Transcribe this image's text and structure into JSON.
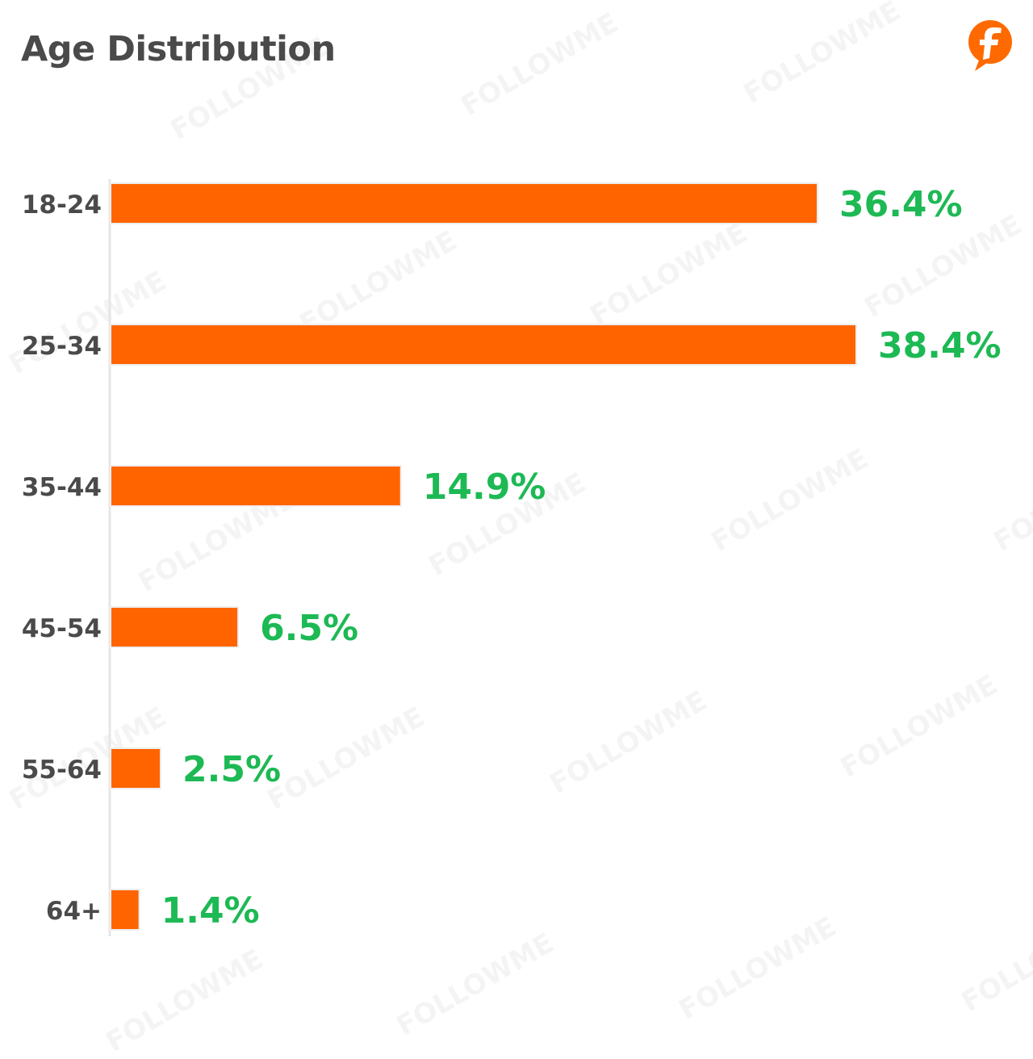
{
  "watermark_text": "FOLLOWME",
  "logo": {
    "icon": "followme-f-logo-icon",
    "color": "#ff6a00"
  },
  "chart_data": {
    "type": "bar",
    "orientation": "horizontal",
    "title": "Age Distribution",
    "categories": [
      "18-24",
      "25-34",
      "35-44",
      "45-54",
      "55-64",
      "64+"
    ],
    "values": [
      36.4,
      38.4,
      14.9,
      6.5,
      2.5,
      1.4
    ],
    "value_labels": [
      "36.4%",
      "38.4%",
      "14.9%",
      "6.5%",
      "2.5%",
      "1.4%"
    ],
    "xlabel": "",
    "ylabel": "",
    "xlim": [
      0,
      38.4
    ],
    "grid": false,
    "legend": "none",
    "colors": {
      "bar": "#ff6400",
      "value_label": "#1db954",
      "category_label": "#4a4a4a",
      "axis": "#e6e6e6",
      "title": "#4a4a4a"
    }
  }
}
